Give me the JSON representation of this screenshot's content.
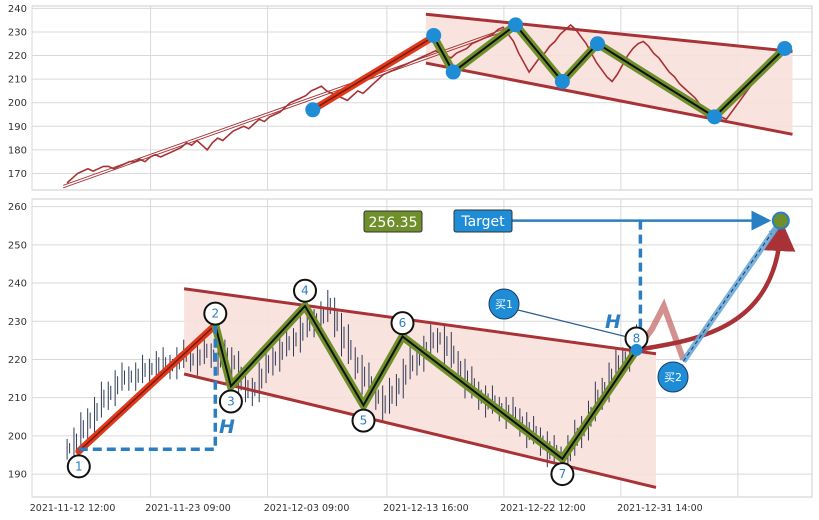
{
  "chart_data": [
    {
      "type": "line",
      "panel": "overview",
      "ylim": [
        163,
        241
      ],
      "yticks": [
        170,
        180,
        190,
        200,
        210,
        220,
        230,
        240
      ],
      "grid": true,
      "colors": {
        "price": "#a83236",
        "channel": "#a83236",
        "fill": "#f8e0da",
        "wave": "#6e8f2a",
        "marker": "#1f8dd6",
        "impulse": "#e0391a"
      },
      "series": [
        {
          "values": [
            166,
            168,
            170,
            171,
            172,
            171,
            172,
            173,
            173,
            172,
            173,
            174,
            175,
            175,
            176,
            175,
            177,
            178,
            177,
            178,
            179,
            180,
            181,
            183,
            182,
            184,
            182,
            180,
            183,
            185,
            184,
            186,
            188,
            189,
            190,
            189,
            191,
            193,
            192,
            194,
            195,
            196,
            198,
            200,
            201,
            202,
            203,
            205,
            206,
            207,
            205,
            204,
            203,
            202,
            201,
            203,
            205,
            204,
            206,
            208,
            210,
            212,
            213,
            214,
            215,
            216,
            217,
            218,
            219,
            220,
            221,
            222,
            221,
            220,
            219,
            221,
            222,
            223,
            225,
            226,
            227,
            228,
            229,
            231,
            232,
            229,
            226,
            221,
            217,
            213,
            216,
            219,
            221,
            224,
            226,
            229,
            231,
            233,
            231,
            228,
            225,
            221,
            217,
            214,
            211,
            209,
            212,
            216,
            220,
            223,
            225,
            226,
            224,
            221,
            219,
            216,
            213,
            211,
            208,
            206,
            204,
            202,
            199,
            197,
            196,
            195,
            194,
            193,
            196,
            199,
            202,
            205,
            208,
            212,
            215,
            218,
            220,
            222,
            222,
            223
          ]
        }
      ],
      "overlays": {
        "channel_upper": [
          [
            0.505,
            237.5
          ],
          [
            0.975,
            221.7
          ]
        ],
        "channel_lower": [
          [
            0.505,
            216.8
          ],
          [
            0.975,
            186.6
          ]
        ],
        "trend_line": [
          [
            0.04,
            165
          ],
          [
            0.62,
            233
          ]
        ],
        "impulse": [
          [
            0.36,
            197
          ],
          [
            0.515,
            228
          ]
        ],
        "wave_points": [
          [
            0.515,
            228
          ],
          [
            0.54,
            213
          ],
          [
            0.62,
            233
          ],
          [
            0.68,
            209
          ],
          [
            0.725,
            225
          ],
          [
            0.875,
            194
          ],
          [
            0.965,
            223
          ]
        ],
        "markers": [
          [
            0.36,
            197
          ],
          [
            0.515,
            228.5
          ],
          [
            0.54,
            213
          ],
          [
            0.62,
            233
          ],
          [
            0.68,
            209
          ],
          [
            0.725,
            225
          ],
          [
            0.875,
            194
          ],
          [
            0.965,
            223
          ]
        ]
      }
    },
    {
      "type": "line",
      "panel": "candles",
      "ylim": [
        184,
        262
      ],
      "yticks": [
        190,
        200,
        210,
        220,
        230,
        240,
        250,
        260
      ],
      "x_tick_labels": [
        "2021-11-12 12:00",
        "2021-11-23 09:00",
        "2021-12-03 09:00",
        "2021-12-13 16:00",
        "2021-12-22 12:00",
        "2021-12-31 14:00"
      ],
      "grid": true,
      "series": [
        {
          "values": [
            197,
            199,
            202,
            205,
            207,
            210,
            212,
            214,
            215,
            216,
            216,
            217,
            218,
            219,
            218,
            219,
            220,
            221,
            220,
            221,
            222,
            221,
            220,
            221,
            219,
            214,
            211,
            213,
            216,
            219,
            221,
            223,
            224,
            226,
            228,
            229,
            231,
            232,
            234,
            229,
            225,
            221,
            218,
            215,
            212,
            210,
            208,
            211,
            214,
            217,
            219,
            221,
            223,
            225,
            226,
            223,
            220,
            217,
            214,
            212,
            210,
            209,
            208,
            207,
            206,
            205,
            203,
            201,
            200,
            198,
            196,
            195,
            194,
            197,
            200,
            203,
            206,
            210,
            213,
            216,
            219,
            221,
            223,
            225
          ]
        }
      ],
      "overlays": {
        "channel_upper": [
          [
            0.195,
            238.5
          ],
          [
            0.8,
            221.5
          ]
        ],
        "channel_lower": [
          [
            0.195,
            216.2
          ],
          [
            0.8,
            186.5
          ]
        ],
        "waves": [
          {
            "label": "1",
            "x": 0.06,
            "y": 196
          },
          {
            "label": "2",
            "x": 0.235,
            "y": 229
          },
          {
            "label": "3",
            "x": 0.255,
            "y": 213
          },
          {
            "label": "4",
            "x": 0.35,
            "y": 234
          },
          {
            "label": "5",
            "x": 0.425,
            "y": 208
          },
          {
            "label": "6",
            "x": 0.475,
            "y": 226
          },
          {
            "label": "7",
            "x": 0.68,
            "y": 194
          },
          {
            "label": "8",
            "x": 0.775,
            "y": 222.5
          }
        ],
        "label_points": [
          [
            0.06,
            192
          ],
          [
            0.235,
            232
          ],
          [
            0.255,
            209
          ],
          [
            0.35,
            238
          ],
          [
            0.425,
            204
          ],
          [
            0.475,
            229.5
          ],
          [
            0.68,
            190
          ],
          [
            0.775,
            225.5
          ]
        ],
        "projection": [
          [
            0.775,
            222.5
          ],
          [
            0.795,
            228
          ],
          [
            0.81,
            234
          ],
          [
            0.835,
            220
          ]
        ],
        "target": {
          "x": 0.96,
          "y": 256.35
        },
        "measure_h": {
          "x1": 0.06,
          "x2": 0.235,
          "base": 196.5,
          "top": 229
        },
        "measure_h2": {
          "x": 0.78,
          "top": 256.35,
          "bottom": 226
        },
        "buy1_point": [
          0.78,
          224.5
        ],
        "buy2_point": [
          0.835,
          219.5
        ]
      }
    }
  ],
  "annotations": {
    "price_label": "256.35",
    "target_label": "Target",
    "h_label": "H",
    "buy1_label": "买1",
    "buy2_label": "买2"
  }
}
